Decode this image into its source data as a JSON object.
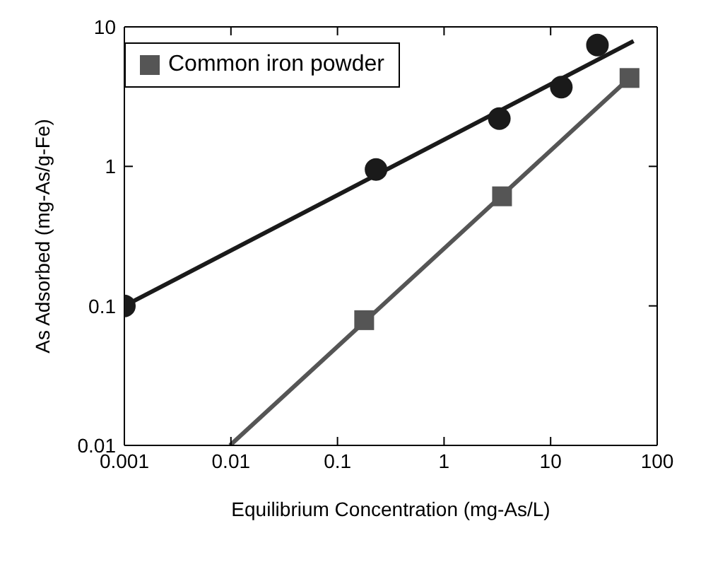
{
  "chart_data": {
    "type": "scatter",
    "xlabel": "Equilibrium Concentration  (mg-As/L)",
    "ylabel": "As Adsorbed  (mg-As/g-Fe)",
    "log": "xy",
    "xlim": [
      0.001,
      100
    ],
    "xticks": [
      0.001,
      0.01,
      0.1,
      1,
      10,
      100
    ],
    "ylim": [
      0.01,
      10
    ],
    "yticks": [
      0.01,
      0.1,
      1,
      10
    ],
    "legend": "top left",
    "series": [
      {
        "marker": "circle",
        "color": "#1a1a1a",
        "x": [
          0.001,
          0.23,
          3.3,
          12.6,
          27.5
        ],
        "values": [
          0.1,
          0.95,
          2.2,
          3.7,
          7.4
        ]
      },
      {
        "type": "line",
        "marker": "none",
        "color": "#1a1a1a",
        "x": [
          0.001,
          60
        ],
        "values": [
          0.1,
          7.9
        ]
      },
      {
        "name": "Common iron powder",
        "marker": "square",
        "color": "#555555",
        "x": [
          0.178,
          3.5,
          55
        ],
        "values": [
          0.079,
          0.61,
          4.3
        ]
      },
      {
        "type": "line",
        "marker": "none",
        "color": "#555555",
        "x": [
          0.0098,
          55
        ],
        "values": [
          0.01,
          4.3
        ]
      }
    ]
  }
}
